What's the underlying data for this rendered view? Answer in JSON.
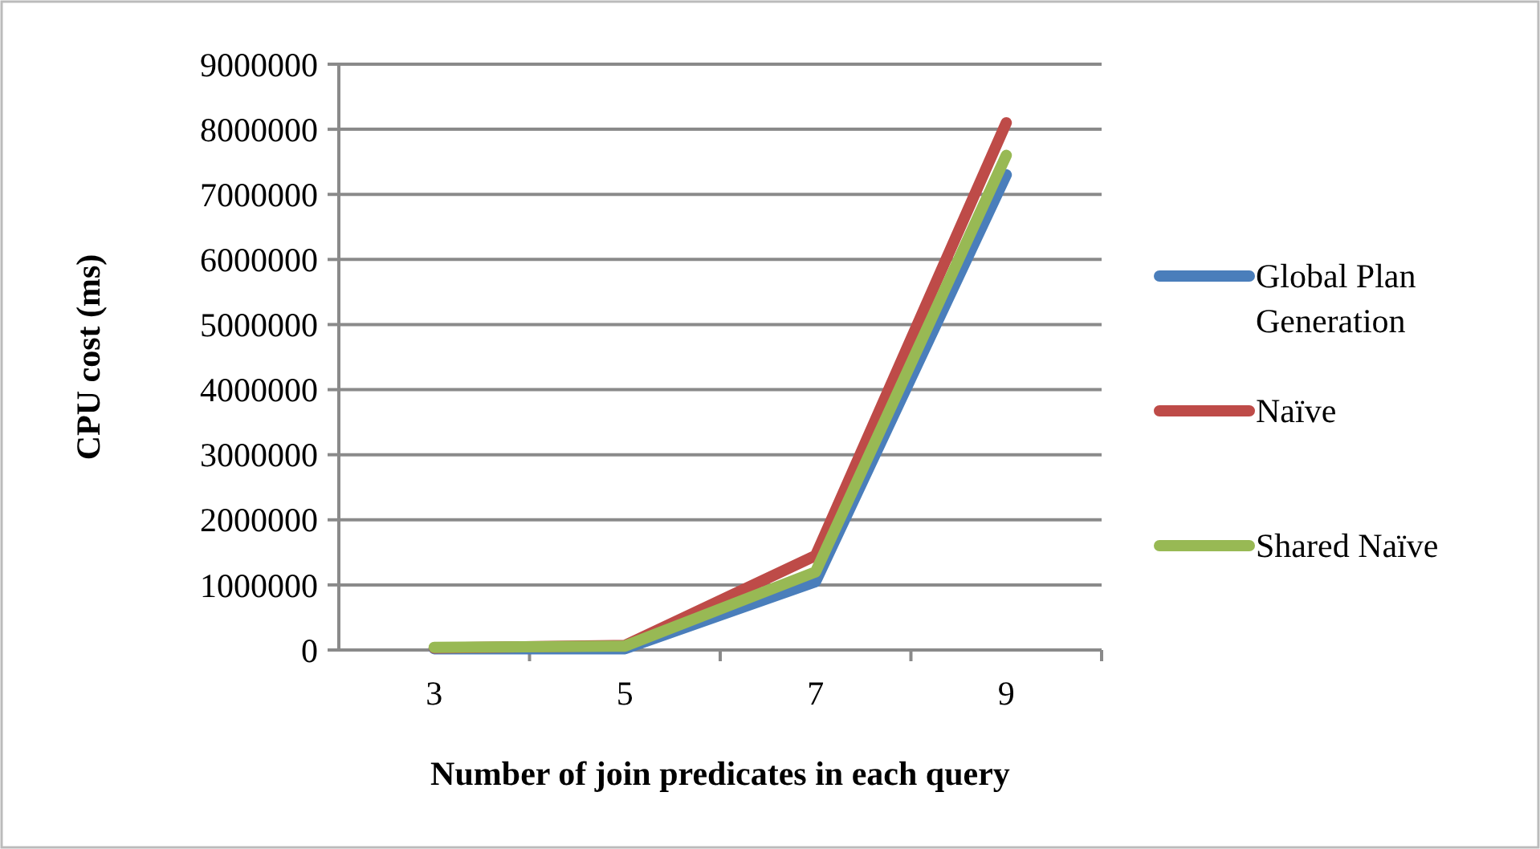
{
  "chart_data": {
    "type": "line",
    "xlabel": "Number of join predicates in each query",
    "ylabel": "CPU cost (ms)",
    "categories": [
      "3",
      "5",
      "7",
      "9"
    ],
    "series": [
      {
        "name": "Global Plan Generation",
        "color": "#4a7ebb",
        "values": [
          20000,
          20000,
          1050000,
          7300000
        ]
      },
      {
        "name": "Naïve",
        "color": "#be4b48",
        "values": [
          30000,
          70000,
          1450000,
          8100000
        ]
      },
      {
        "name": "Shared Naïve",
        "color": "#98b954",
        "values": [
          40000,
          60000,
          1200000,
          7600000
        ]
      }
    ],
    "ylim": [
      0,
      9000000
    ],
    "yticks": [
      0,
      1000000,
      2000000,
      3000000,
      4000000,
      5000000,
      6000000,
      7000000,
      8000000,
      9000000
    ],
    "grid": "y",
    "legend": "right",
    "marker": "none",
    "line_style": "solid"
  }
}
